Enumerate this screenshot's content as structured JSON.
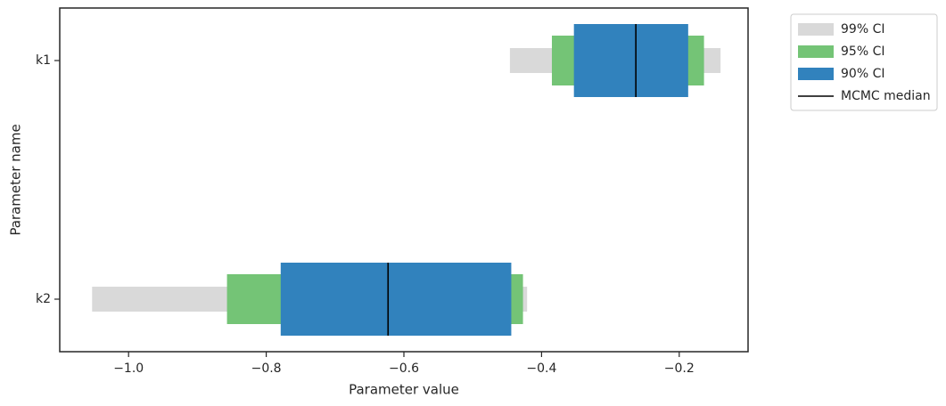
{
  "chart_data": {
    "type": "interval",
    "categories": [
      "k1",
      "k2"
    ],
    "x_label": "Parameter value",
    "y_label": "Parameter name",
    "xlim": [
      -1.1,
      -0.1
    ],
    "xticks": [
      {
        "value": -1.0,
        "label": "−1.0"
      },
      {
        "value": -0.8,
        "label": "−0.8"
      },
      {
        "value": -0.6,
        "label": "−0.6"
      },
      {
        "value": -0.4,
        "label": "−0.4"
      },
      {
        "value": -0.2,
        "label": "−0.2"
      }
    ],
    "intervals": [
      {
        "name": "99% CI",
        "color": "#d9d9d9",
        "low": [
          -0.446,
          -1.053
        ],
        "high": [
          -0.14,
          -0.421
        ]
      },
      {
        "name": "95% CI",
        "color": "#74c476",
        "low": [
          -0.385,
          -0.857
        ],
        "high": [
          -0.164,
          -0.427
        ]
      },
      {
        "name": "90% CI",
        "color": "#3182bd",
        "low": [
          -0.353,
          -0.779
        ],
        "high": [
          -0.187,
          -0.444
        ]
      }
    ],
    "median": {
      "name": "MCMC median",
      "color": "#000000",
      "values": [
        -0.263,
        -0.623
      ]
    },
    "legend": "outside-upper-right"
  }
}
